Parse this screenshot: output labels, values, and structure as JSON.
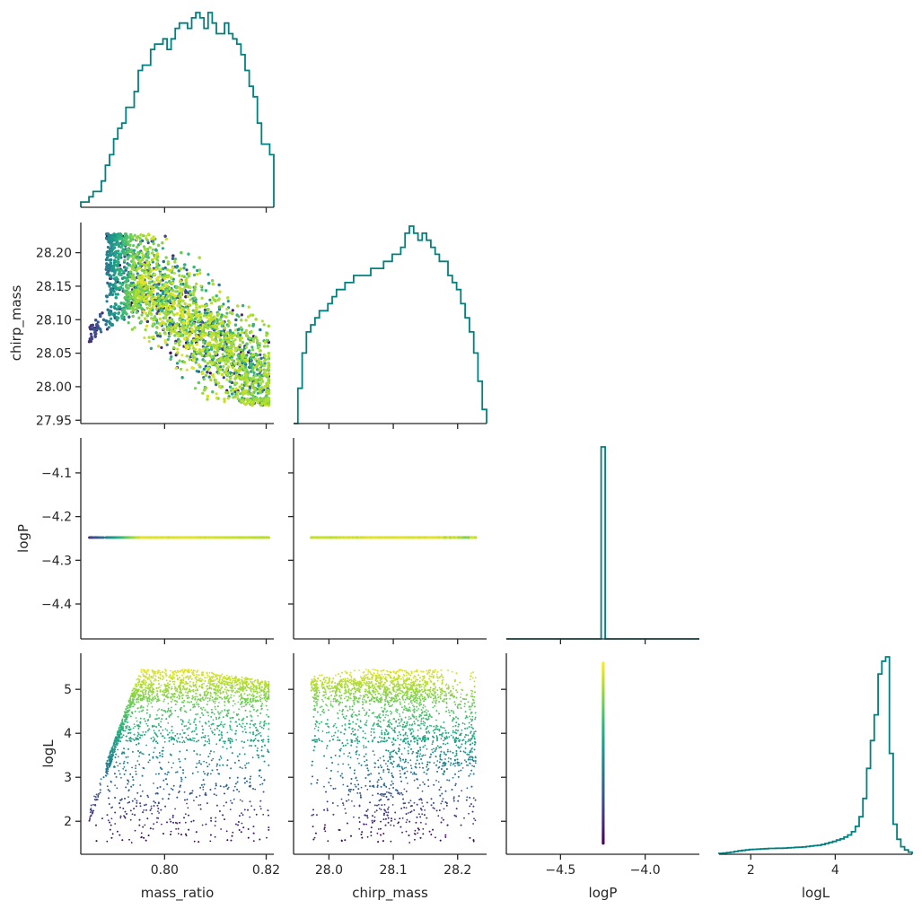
{
  "chart_data": {
    "type": "corner",
    "variables": [
      "mass_ratio",
      "chirp_mass",
      "logP",
      "logL"
    ],
    "hist_color": "#008080",
    "scatter_colormap": "viridis",
    "scatter_color_by": "logL",
    "ranges": {
      "mass_ratio": [
        0.7835,
        0.8215
      ],
      "chirp_mass": [
        27.945,
        28.245
      ],
      "logP": [
        -4.48,
        -4.02
      ],
      "logL": [
        1.25,
        5.82
      ]
    },
    "hist_ranges": {
      "logP": [
        -4.82,
        -3.68
      ],
      "logL": [
        1.25,
        5.82
      ]
    },
    "ticks": {
      "mass_ratio": {
        "values": [
          0.8,
          0.82
        ],
        "labels": [
          "0.80",
          "0.82"
        ]
      },
      "chirp_mass": {
        "values": [
          27.95,
          28.0,
          28.05,
          28.1,
          28.15,
          28.2
        ],
        "labels": [
          "27.95",
          "28.00",
          "28.05",
          "28.10",
          "28.15",
          "28.20"
        ]
      },
      "chirp_mass_x": {
        "values": [
          28.0,
          28.1,
          28.2
        ],
        "labels": [
          "28.0",
          "28.1",
          "28.2"
        ]
      },
      "logP": {
        "values": [
          -4.1,
          -4.2,
          -4.3,
          -4.4
        ],
        "labels": [
          "−4.1",
          "−4.2",
          "−4.3",
          "−4.4"
        ]
      },
      "logP_x": {
        "values": [
          -4.5,
          -4.0
        ],
        "labels": [
          "−4.5",
          "−4.0"
        ]
      },
      "logL": {
        "values": [
          2,
          3,
          4,
          5
        ],
        "labels": [
          "2",
          "3",
          "4",
          "5"
        ]
      },
      "logL_x": {
        "values": [
          2,
          4
        ],
        "labels": [
          "2",
          "4"
        ]
      }
    },
    "axis_labels": {
      "x": [
        "mass_ratio",
        "chirp_mass",
        "logP",
        "logL"
      ],
      "y": [
        "",
        "chirp_mass",
        "logP",
        "logL"
      ]
    },
    "logP_value": -4.248,
    "hist_mass_ratio": [
      1,
      1,
      2,
      3,
      3,
      5,
      8,
      10,
      13,
      15,
      16,
      19,
      19,
      22,
      26,
      27,
      27,
      30,
      31,
      31,
      32,
      30,
      32,
      34,
      35,
      35,
      34,
      36,
      37,
      36,
      34,
      37,
      35,
      33,
      33,
      35,
      33,
      32,
      31,
      29,
      26,
      23,
      21,
      16,
      12,
      12,
      10
    ],
    "hist_chirp_mass": [
      0,
      5,
      10,
      13,
      14,
      15,
      16,
      16,
      17,
      18,
      19,
      19,
      20,
      20,
      21,
      21,
      21,
      21,
      22,
      22,
      22,
      23,
      23,
      24,
      24,
      25,
      27,
      28,
      27,
      26,
      27,
      26,
      25,
      24,
      23,
      23,
      21,
      20,
      19,
      17,
      15,
      13,
      10,
      6,
      2
    ],
    "hist_logL": [
      0.4,
      0.6,
      0.8,
      1.0,
      1.3,
      1.6,
      1.8,
      2.0,
      2.2,
      2.3,
      2.4,
      2.5,
      2.6,
      2.7,
      2.7,
      2.8,
      2.8,
      2.9,
      3.0,
      3.1,
      3.2,
      3.3,
      3.4,
      3.6,
      3.8,
      4.0,
      4.2,
      4.5,
      5.0,
      5.5,
      6.0,
      6.6,
      7.2,
      8.0,
      9.0,
      10.5,
      13.0,
      17.5,
      26.0,
      40.0,
      53.0,
      65.0,
      84.0,
      90.0,
      92.0,
      47.0,
      14.0,
      7.0,
      3.5,
      2.0,
      1.0
    ]
  }
}
